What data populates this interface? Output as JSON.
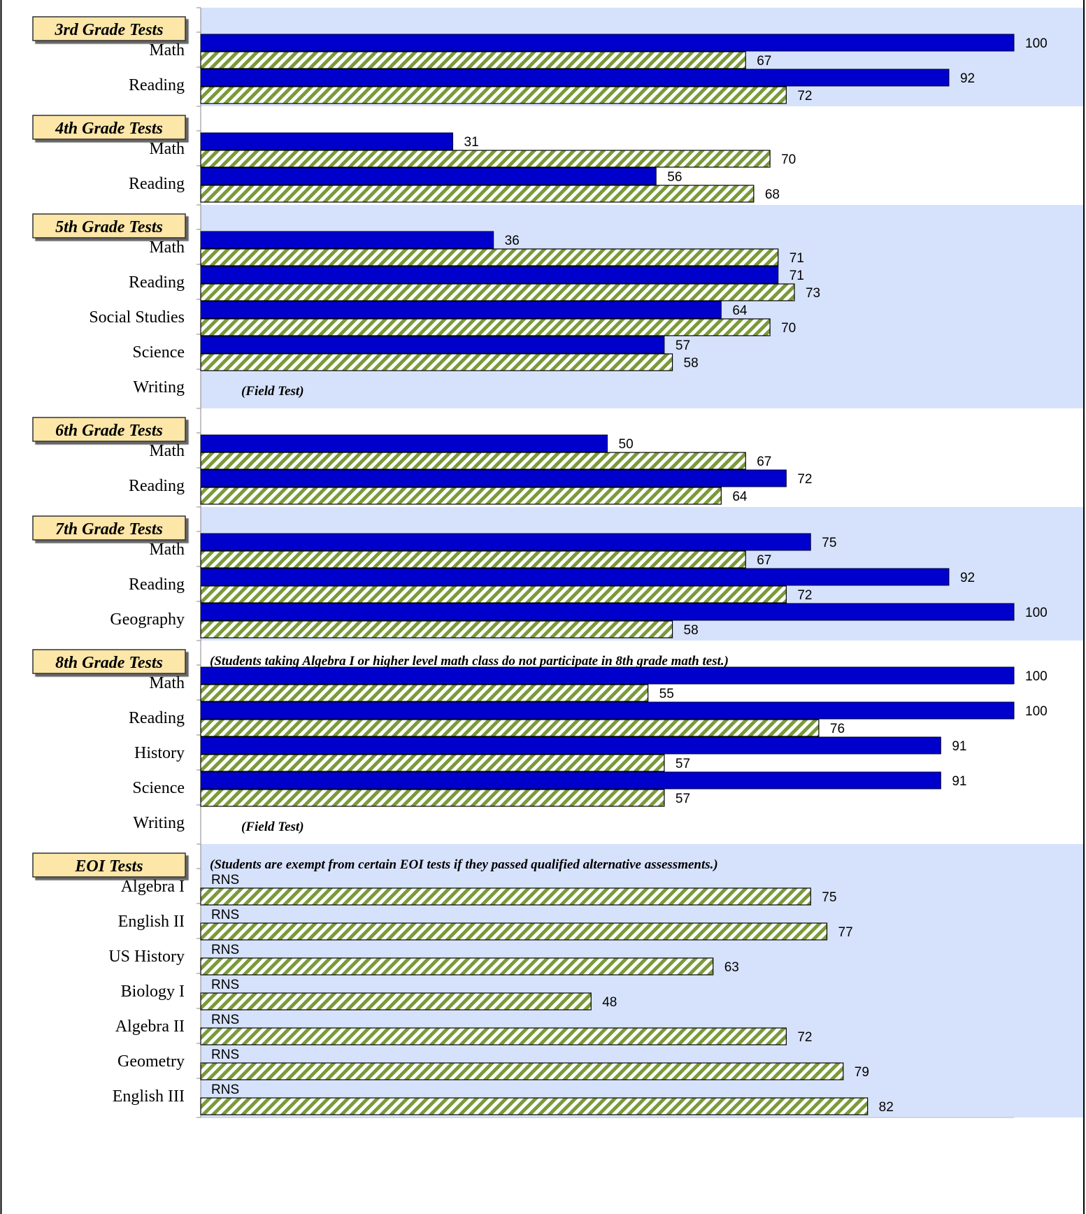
{
  "chart_data": {
    "type": "bar",
    "orientation": "horizontal",
    "xlim": [
      0,
      100
    ],
    "colors": {
      "school_bar": "#0000CC",
      "school_bar_border": "#000033",
      "hatch_bar": "#7A9A3A",
      "hatch_bg": "#FFFFFF",
      "band_shade": "#D6E2FB",
      "grade_box": "#FCE6A8"
    },
    "series": [
      {
        "key": "school",
        "pattern": "solid"
      },
      {
        "key": "comparison",
        "pattern": "hatched"
      }
    ],
    "groups": [
      {
        "label": "3rd Grade Tests",
        "shaded": true,
        "note": "",
        "items": [
          {
            "label": "Math",
            "school": 100,
            "school_text": "100",
            "comparison": 67,
            "comparison_text": "67"
          },
          {
            "label": "Reading",
            "school": 92,
            "school_text": "92",
            "comparison": 72,
            "comparison_text": "72"
          }
        ]
      },
      {
        "label": "4th Grade Tests",
        "shaded": false,
        "note": "",
        "items": [
          {
            "label": "Math",
            "school": 31,
            "school_text": "31",
            "comparison": 70,
            "comparison_text": "70"
          },
          {
            "label": "Reading",
            "school": 56,
            "school_text": "56",
            "comparison": 68,
            "comparison_text": "68"
          }
        ]
      },
      {
        "label": "5th Grade Tests",
        "shaded": true,
        "note": "",
        "items": [
          {
            "label": "Math",
            "school": 36,
            "school_text": "36",
            "comparison": 71,
            "comparison_text": "71"
          },
          {
            "label": "Reading",
            "school": 71,
            "school_text": "71",
            "comparison": 73,
            "comparison_text": "73"
          },
          {
            "label": "Social Studies",
            "school": 64,
            "school_text": "64",
            "comparison": 70,
            "comparison_text": "70"
          },
          {
            "label": "Science",
            "school": 57,
            "school_text": "57",
            "comparison": 58,
            "comparison_text": "58"
          },
          {
            "label": "Writing",
            "school": null,
            "comparison": null,
            "field_note": "(Field Test)"
          }
        ]
      },
      {
        "label": "6th Grade Tests",
        "shaded": false,
        "note": "",
        "items": [
          {
            "label": "Math",
            "school": 50,
            "school_text": "50",
            "comparison": 67,
            "comparison_text": "67"
          },
          {
            "label": "Reading",
            "school": 72,
            "school_text": "72",
            "comparison": 64,
            "comparison_text": "64"
          }
        ]
      },
      {
        "label": "7th Grade Tests",
        "shaded": true,
        "note": "",
        "items": [
          {
            "label": "Math",
            "school": 75,
            "school_text": "75",
            "comparison": 67,
            "comparison_text": "67"
          },
          {
            "label": "Reading",
            "school": 92,
            "school_text": "92",
            "comparison": 72,
            "comparison_text": "72"
          },
          {
            "label": "Geography",
            "school": 100,
            "school_text": "100",
            "comparison": 58,
            "comparison_text": "58"
          }
        ]
      },
      {
        "label": "8th Grade Tests",
        "shaded": false,
        "note": "(Students taking Algebra I or higher level math class do not participate in 8th grade math test.)",
        "items": [
          {
            "label": "Math",
            "school": 100,
            "school_text": "100",
            "comparison": 55,
            "comparison_text": "55"
          },
          {
            "label": "Reading",
            "school": 100,
            "school_text": "100",
            "comparison": 76,
            "comparison_text": "76"
          },
          {
            "label": "History",
            "school": 91,
            "school_text": "91",
            "comparison": 57,
            "comparison_text": "57"
          },
          {
            "label": "Science",
            "school": 91,
            "school_text": "91",
            "comparison": 57,
            "comparison_text": "57"
          },
          {
            "label": "Writing",
            "school": null,
            "comparison": null,
            "field_note": "(Field Test)"
          }
        ]
      },
      {
        "label": "EOI Tests",
        "shaded": true,
        "note": "(Students are exempt from certain EOI tests if they passed qualified alternative assessments.)",
        "items": [
          {
            "label": "Algebra I",
            "school": null,
            "school_text": "RNS",
            "comparison": 75,
            "comparison_text": "75"
          },
          {
            "label": "English II",
            "school": null,
            "school_text": "RNS",
            "comparison": 77,
            "comparison_text": "77"
          },
          {
            "label": "US History",
            "school": null,
            "school_text": "RNS",
            "comparison": 63,
            "comparison_text": "63"
          },
          {
            "label": "Biology I",
            "school": null,
            "school_text": "RNS",
            "comparison": 48,
            "comparison_text": "48"
          },
          {
            "label": "Algebra II",
            "school": null,
            "school_text": "RNS",
            "comparison": 72,
            "comparison_text": "72"
          },
          {
            "label": "Geometry",
            "school": null,
            "school_text": "RNS",
            "comparison": 79,
            "comparison_text": "79"
          },
          {
            "label": "English III",
            "school": null,
            "school_text": "RNS",
            "comparison": 82,
            "comparison_text": "82"
          }
        ]
      }
    ]
  }
}
